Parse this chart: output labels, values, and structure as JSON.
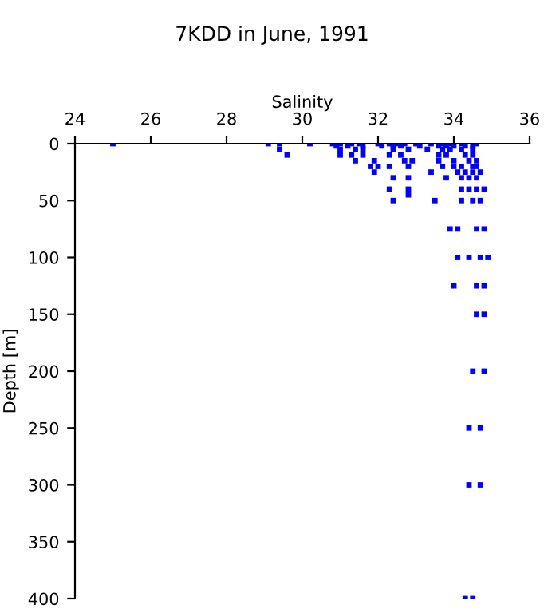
{
  "chart_data": {
    "type": "scatter",
    "title": "7KDD in June, 1991",
    "xlabel": "Salinity",
    "ylabel": "Depth [m]",
    "xlim": [
      24,
      36
    ],
    "xticks": [
      24,
      26,
      28,
      30,
      32,
      34,
      36
    ],
    "ylim": [
      400,
      0
    ],
    "yticks": [
      0,
      50,
      100,
      150,
      200,
      250,
      300,
      350,
      400
    ],
    "grid": false,
    "marker": "square",
    "legend": false,
    "series": [
      {
        "color": "#0000ff",
        "x": [
          25.0,
          29.1,
          29.4,
          30.2,
          30.8,
          31.0,
          31.3,
          31.5,
          32.0,
          32.3,
          32.5,
          32.7,
          33.0,
          33.4,
          33.7,
          33.9,
          34.2,
          34.6,
          30.9,
          31.2,
          31.6,
          32.1,
          32.4,
          32.6,
          33.1,
          33.6,
          33.8,
          34.0,
          34.3,
          34.5,
          29.4,
          31.0,
          31.4,
          31.6,
          32.4,
          32.8,
          33.3,
          33.7,
          33.9,
          34.2,
          34.5,
          29.6,
          31.0,
          31.3,
          31.6,
          32.3,
          32.6,
          33.6,
          33.8,
          34.3,
          34.5,
          31.4,
          31.9,
          32.7,
          32.9,
          33.6,
          34.0,
          34.4,
          34.6,
          31.8,
          32.0,
          32.3,
          32.8,
          33.7,
          34.0,
          34.2,
          34.5,
          34.6,
          31.9,
          33.4,
          34.1,
          34.3,
          34.5,
          34.7,
          32.4,
          32.8,
          33.8,
          34.2,
          34.4,
          34.6,
          32.3,
          32.8,
          34.2,
          34.4,
          34.6,
          34.8,
          32.8,
          32.4,
          33.5,
          34.2,
          34.5,
          34.7,
          33.9,
          34.1,
          34.6,
          34.8,
          34.1,
          34.4,
          34.7,
          34.9,
          34.0,
          34.6,
          34.8,
          34.6,
          34.8,
          34.5,
          34.8,
          34.4,
          34.7,
          34.4,
          34.7,
          34.3,
          34.5
        ],
        "values": [
          0,
          0,
          0,
          0,
          0,
          0,
          0,
          0,
          0,
          0,
          0,
          0,
          0,
          0,
          0,
          0,
          0,
          0,
          2,
          2,
          2,
          2,
          2,
          2,
          2,
          2,
          2,
          2,
          2,
          2,
          5,
          5,
          5,
          5,
          5,
          5,
          5,
          5,
          5,
          5,
          5,
          10,
          10,
          10,
          10,
          10,
          10,
          10,
          10,
          10,
          10,
          15,
          15,
          15,
          15,
          15,
          15,
          15,
          15,
          20,
          20,
          20,
          20,
          20,
          20,
          20,
          20,
          20,
          25,
          25,
          25,
          25,
          25,
          25,
          30,
          30,
          30,
          30,
          30,
          30,
          40,
          40,
          40,
          40,
          40,
          40,
          45,
          50,
          50,
          50,
          50,
          50,
          75,
          75,
          75,
          75,
          100,
          100,
          100,
          100,
          125,
          125,
          125,
          150,
          150,
          200,
          200,
          250,
          250,
          300,
          300,
          400,
          400
        ]
      }
    ]
  }
}
